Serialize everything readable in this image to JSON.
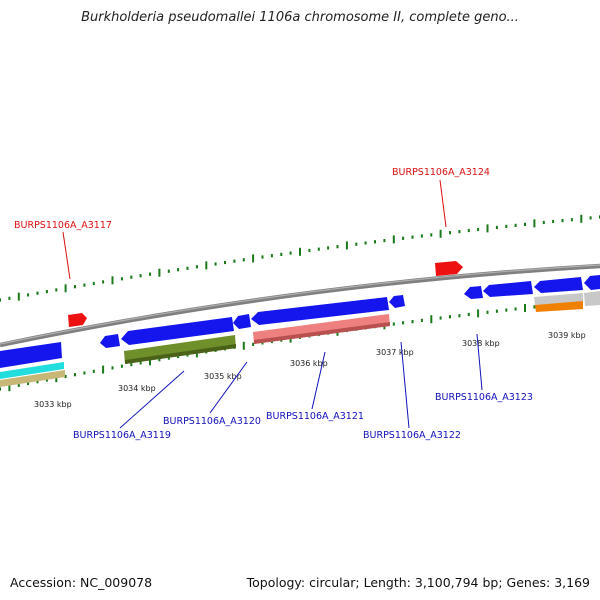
{
  "title": "Burkholderia pseudomallei 1106a chromosome II, complete geno...",
  "footer": {
    "accession": "Accession: NC_009078",
    "summary": "Topology: circular; Length: 3,100,794 bp; Genes: 3,169"
  },
  "colors": {
    "background": "#ffffff",
    "backbone": "#808080",
    "ticks": "#1a7a1a",
    "forward_gene": "#ee1111",
    "cds": "#1515ee",
    "rna": "#ee8080",
    "category_olive": "#6e8f2a",
    "category_cyan": "#22dddd",
    "category_khaki": "#c8b878",
    "category_orange": "#f08000",
    "category_grey": "#c8c8c8",
    "label_red": "#dd1111",
    "label_blue": "#1111bb"
  },
  "scale": {
    "unit": "kbp",
    "labels": [
      "3033 kbp",
      "3034 kbp",
      "3035 kbp",
      "3036 kbp",
      "3037 kbp",
      "3038 kbp",
      "3039 kbp"
    ]
  },
  "genes": [
    {
      "locus": "BURPS1106A_A3117",
      "strand": "+",
      "label_color": "red"
    },
    {
      "locus": "BURPS1106A_A3119",
      "strand": "-",
      "label_color": "blue"
    },
    {
      "locus": "BURPS1106A_A3120",
      "strand": "-",
      "label_color": "blue"
    },
    {
      "locus": "BURPS1106A_A3121",
      "strand": "-",
      "label_color": "blue"
    },
    {
      "locus": "BURPS1106A_A3122",
      "strand": "-",
      "label_color": "blue"
    },
    {
      "locus": "BURPS1106A_A3123",
      "strand": "-",
      "label_color": "blue"
    },
    {
      "locus": "BURPS1106A_A3124",
      "strand": "+",
      "label_color": "red"
    }
  ]
}
